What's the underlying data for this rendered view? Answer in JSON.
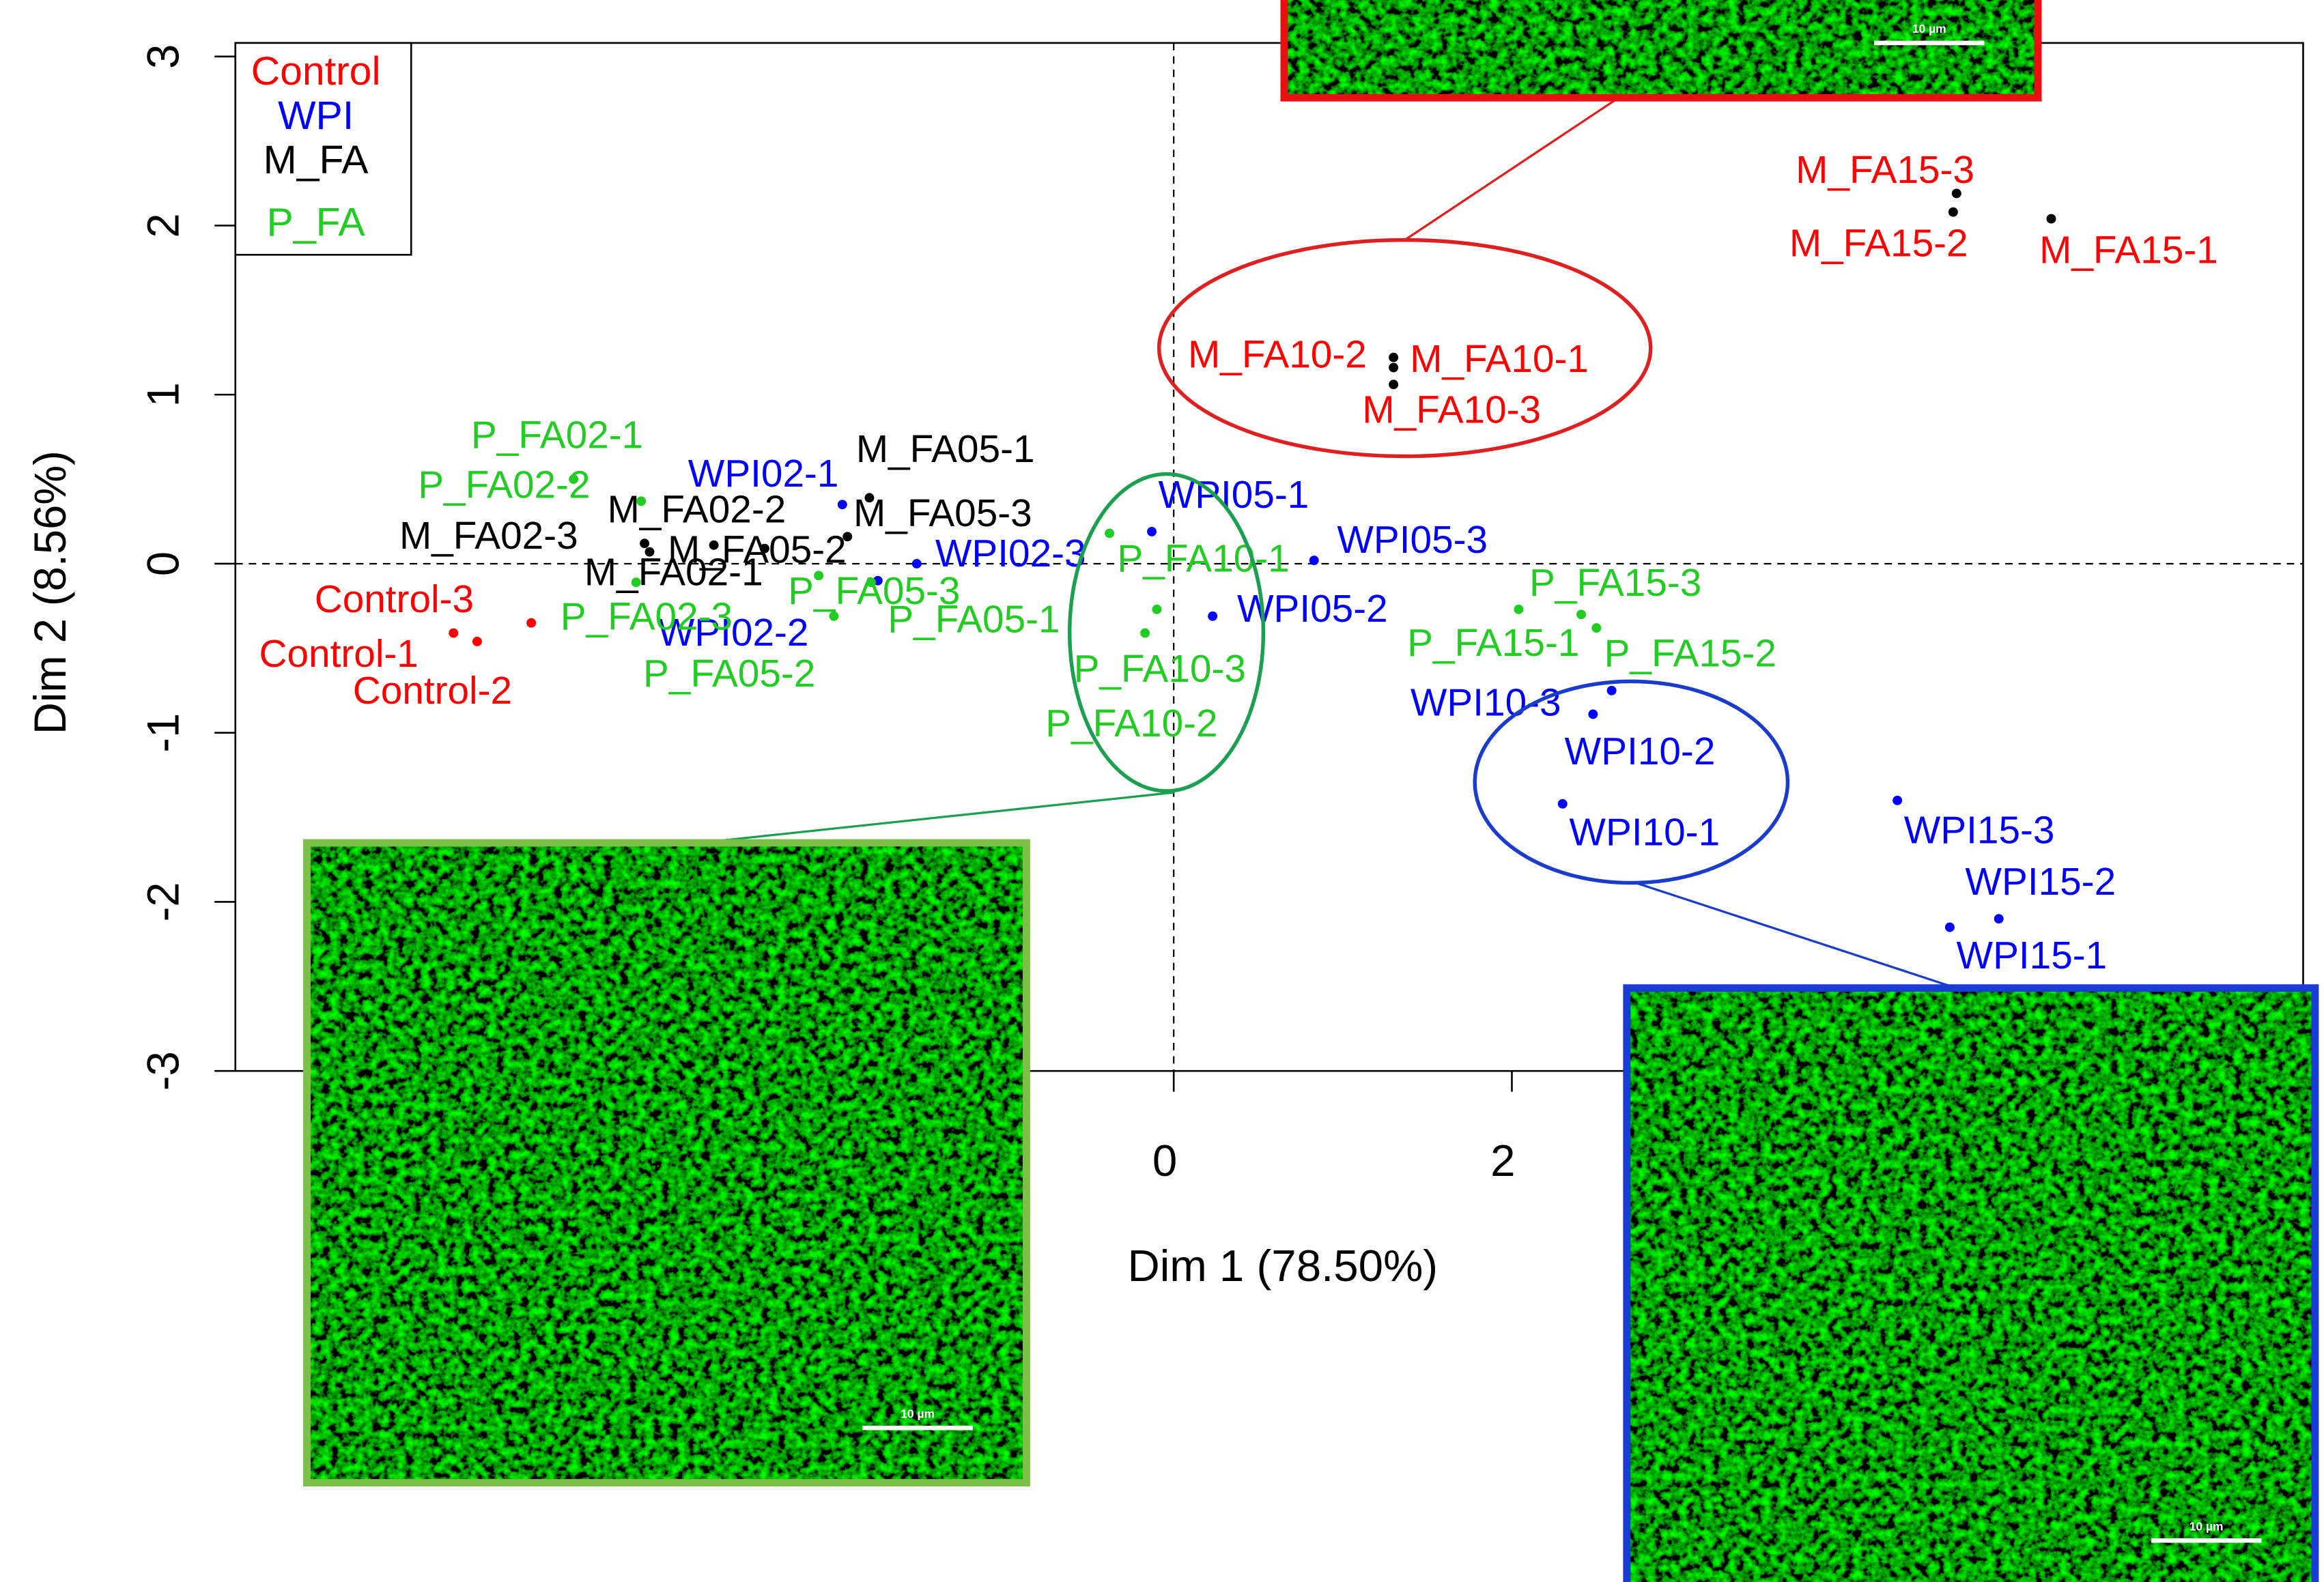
{
  "chart_data": {
    "type": "scatter",
    "xlabel": "Dim 1 (78.50%)",
    "ylabel": "Dim 2 (8.56%)",
    "xlim": [
      -5.55,
      6.68
    ],
    "ylim": [
      -3.0,
      3.08
    ],
    "xticks": [
      0,
      2
    ],
    "yticks": [
      -3,
      -2,
      -1,
      0,
      1,
      2,
      3
    ],
    "legend": "top-left",
    "series": [
      {
        "name": "Control",
        "color": "#ff0000",
        "labels": [
          "Control-1",
          "Control-2",
          "Control-3"
        ],
        "x": [
          -4.26,
          -4.12,
          -3.8
        ],
        "values": [
          -0.41,
          -0.46,
          -0.35
        ]
      },
      {
        "name": "WPI",
        "color": "#0000ff",
        "labels": [
          "WPI02-1",
          "WPI02-2",
          "WPI02-3",
          "WPI05-1",
          "WPI05-2",
          "WPI05-3",
          "WPI10-1",
          "WPI10-2",
          "WPI10-3",
          "WPI15-1",
          "WPI15-2",
          "WPI15-3"
        ],
        "x": [
          -1.96,
          -1.75,
          -1.52,
          -0.13,
          0.23,
          0.83,
          2.3,
          2.59,
          2.48,
          4.59,
          4.88,
          4.28
        ],
        "values": [
          0.35,
          -0.1,
          0.0,
          0.19,
          -0.31,
          0.02,
          -1.42,
          -0.75,
          -0.89,
          -2.15,
          -2.1,
          -1.4
        ]
      },
      {
        "name": "M_FA",
        "color": "#000000",
        "labels": [
          "M_FA02-1",
          "M_FA02-2",
          "M_FA02-3",
          "M_FA05-1",
          "M_FA05-2",
          "M_FA05-3",
          "M_FA10-1",
          "M_FA10-2",
          "M_FA10-3",
          "M_FA15-1",
          "M_FA15-2",
          "M_FA15-3"
        ],
        "label_colors": [
          "#000000",
          "#000000",
          "#000000",
          "#000000",
          "#000000",
          "#000000",
          "#ff0000",
          "#ff0000",
          "#ff0000",
          "#ff0000",
          "#ff0000",
          "#ff0000"
        ],
        "x": [
          -2.42,
          -3.13,
          -3.1,
          -1.8,
          -2.72,
          -1.93,
          1.3,
          1.3,
          1.3,
          5.19,
          4.61,
          4.63
        ],
        "values": [
          0.09,
          0.12,
          0.07,
          0.39,
          0.11,
          0.16,
          1.16,
          1.22,
          1.06,
          2.04,
          2.08,
          2.19
        ]
      },
      {
        "name": "P_FA",
        "color": "#22cc22",
        "labels": [
          "P_FA02-1",
          "P_FA02-2",
          "P_FA02-3",
          "P_FA05-1",
          "P_FA05-2",
          "P_FA05-3",
          "P_FA10-1",
          "P_FA10-2",
          "P_FA10-3",
          "P_FA15-1",
          "P_FA15-2",
          "P_FA15-3"
        ],
        "x": [
          -3.55,
          -3.15,
          -3.18,
          -1.79,
          -2.1,
          -2.01,
          -0.38,
          -0.17,
          -0.1,
          2.41,
          2.5,
          2.04
        ],
        "values": [
          0.5,
          0.37,
          -0.11,
          -0.11,
          -0.07,
          -0.31,
          0.18,
          -0.41,
          -0.27,
          -0.3,
          -0.38,
          -0.27
        ]
      }
    ],
    "insets": [
      {
        "scale_label": "10 µm"
      },
      {
        "scale_label": "10 µm"
      },
      {
        "scale_label": "10 µm"
      }
    ]
  }
}
